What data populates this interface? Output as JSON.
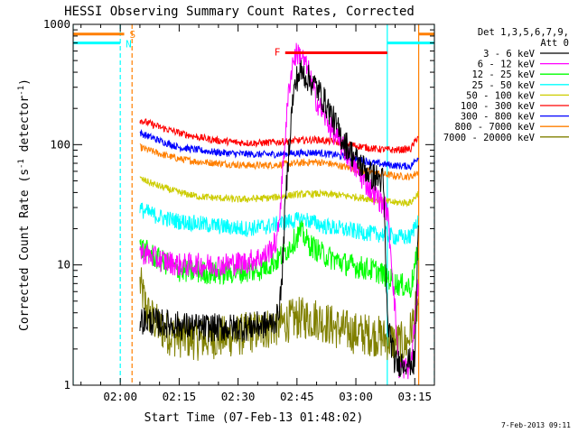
{
  "chart_data": {
    "type": "line",
    "title": "HESSI Observing Summary Count Rates, Corrected",
    "xlabel": "Start Time (07-Feb-13 01:48:02)",
    "ylabel": "Corrected Count Rate (s",
    "ylabel_sup1": "-1",
    "ylabel_mid": " detector",
    "ylabel_sup2": "-1",
    "ylabel_end": ")",
    "yscale": "log",
    "ylim": [
      1,
      1000
    ],
    "xlim_minutes": [
      108,
      200
    ],
    "x_ticks": [
      {
        "minute": 120,
        "label": "02:00"
      },
      {
        "minute": 135,
        "label": "02:15"
      },
      {
        "minute": 150,
        "label": "02:30"
      },
      {
        "minute": 165,
        "label": "02:45"
      },
      {
        "minute": 180,
        "label": "03:00"
      },
      {
        "minute": 195,
        "label": "03:15"
      }
    ],
    "y_ticks": [
      {
        "value": 1,
        "label": "1"
      },
      {
        "value": 10,
        "label": "10"
      },
      {
        "value": 100,
        "label": "100"
      },
      {
        "value": 1000,
        "label": "1000"
      }
    ],
    "legend_title_1": "Det 1,3,5,6,7,9,",
    "legend_title_2": "Att 0",
    "legend_position": "right",
    "series": [
      {
        "name": "3 - 6 keV",
        "color": "#000000",
        "noise": 0.12,
        "points": [
          [
            125,
            3.5
          ],
          [
            133,
            3.2
          ],
          [
            140,
            3.0
          ],
          [
            150,
            3.0
          ],
          [
            158,
            3.2
          ],
          [
            160,
            3.6
          ],
          [
            161,
            6
          ],
          [
            162,
            30
          ],
          [
            163,
            100
          ],
          [
            164,
            250
          ],
          [
            165,
            360
          ],
          [
            166,
            400
          ],
          [
            167,
            380
          ],
          [
            170,
            300
          ],
          [
            173,
            200
          ],
          [
            176,
            120
          ],
          [
            180,
            75
          ],
          [
            184,
            55
          ],
          [
            187,
            50
          ],
          [
            188,
            3.5
          ],
          [
            190,
            1.5
          ],
          [
            193,
            1.6
          ],
          [
            195,
            1.5
          ],
          [
            196,
            30
          ]
        ]
      },
      {
        "name": "6 - 12 keV",
        "color": "#ff00ff",
        "noise": 0.1,
        "points": [
          [
            125,
            13
          ],
          [
            130,
            11
          ],
          [
            135,
            10
          ],
          [
            145,
            10
          ],
          [
            152,
            10.5
          ],
          [
            157,
            12
          ],
          [
            160,
            16
          ],
          [
            161,
            40
          ],
          [
            162,
            120
          ],
          [
            163,
            300
          ],
          [
            164,
            500
          ],
          [
            165,
            580
          ],
          [
            166,
            560
          ],
          [
            168,
            400
          ],
          [
            170,
            230
          ],
          [
            174,
            130
          ],
          [
            178,
            80
          ],
          [
            182,
            50
          ],
          [
            186,
            35
          ],
          [
            188,
            28
          ],
          [
            189,
            12
          ],
          [
            191,
            1.4
          ],
          [
            194,
            1.4
          ],
          [
            196,
            8
          ]
        ]
      },
      {
        "name": "12 - 25 keV",
        "color": "#00ff00",
        "noise": 0.1,
        "points": [
          [
            125,
            14
          ],
          [
            130,
            11
          ],
          [
            135,
            9
          ],
          [
            145,
            8.5
          ],
          [
            155,
            9
          ],
          [
            160,
            11
          ],
          [
            163,
            14
          ],
          [
            166,
            19
          ],
          [
            168,
            15
          ],
          [
            172,
            12
          ],
          [
            178,
            10
          ],
          [
            185,
            9
          ],
          [
            188,
            8
          ],
          [
            190,
            7
          ],
          [
            194,
            6.5
          ],
          [
            196,
            14
          ]
        ]
      },
      {
        "name": "25 - 50 keV",
        "color": "#00ffff",
        "noise": 0.07,
        "points": [
          [
            125,
            29
          ],
          [
            130,
            25
          ],
          [
            135,
            23
          ],
          [
            145,
            21
          ],
          [
            152,
            20
          ],
          [
            158,
            21
          ],
          [
            163,
            23
          ],
          [
            167,
            24
          ],
          [
            172,
            21
          ],
          [
            180,
            19
          ],
          [
            185,
            18
          ],
          [
            188,
            18
          ],
          [
            190,
            17
          ],
          [
            194,
            17
          ],
          [
            196,
            26
          ]
        ]
      },
      {
        "name": "50 - 100 keV",
        "color": "#cccc00",
        "noise": 0.03,
        "points": [
          [
            125,
            52
          ],
          [
            130,
            45
          ],
          [
            135,
            40
          ],
          [
            140,
            37
          ],
          [
            145,
            36
          ],
          [
            150,
            35
          ],
          [
            158,
            36
          ],
          [
            165,
            38.5
          ],
          [
            170,
            39
          ],
          [
            176,
            38
          ],
          [
            182,
            36
          ],
          [
            187,
            34
          ],
          [
            190,
            33
          ],
          [
            194,
            33
          ],
          [
            196,
            40
          ]
        ]
      },
      {
        "name": "100 - 300 keV",
        "color": "#ff0000",
        "noise": 0.03,
        "points": [
          [
            125,
            160
          ],
          [
            130,
            140
          ],
          [
            135,
            125
          ],
          [
            140,
            115
          ],
          [
            145,
            108
          ],
          [
            150,
            104
          ],
          [
            155,
            103
          ],
          [
            160,
            105
          ],
          [
            165,
            108
          ],
          [
            170,
            110
          ],
          [
            175,
            105
          ],
          [
            180,
            98
          ],
          [
            185,
            92
          ],
          [
            190,
            90
          ],
          [
            194,
            92
          ],
          [
            196,
            120
          ]
        ]
      },
      {
        "name": "300 - 800 keV",
        "color": "#0000ff",
        "noise": 0.03,
        "points": [
          [
            125,
            125
          ],
          [
            130,
            108
          ],
          [
            135,
            95
          ],
          [
            140,
            90
          ],
          [
            145,
            86
          ],
          [
            150,
            84
          ],
          [
            155,
            83
          ],
          [
            160,
            83
          ],
          [
            165,
            85
          ],
          [
            170,
            86
          ],
          [
            175,
            82
          ],
          [
            180,
            76
          ],
          [
            185,
            70
          ],
          [
            190,
            67
          ],
          [
            194,
            66
          ],
          [
            196,
            80
          ]
        ]
      },
      {
        "name": "800 - 7000 keV",
        "color": "#ff7f00",
        "noise": 0.03,
        "points": [
          [
            125,
            95
          ],
          [
            130,
            84
          ],
          [
            135,
            76
          ],
          [
            140,
            72
          ],
          [
            145,
            70
          ],
          [
            150,
            68
          ],
          [
            155,
            67
          ],
          [
            160,
            68
          ],
          [
            165,
            70
          ],
          [
            170,
            72
          ],
          [
            175,
            68
          ],
          [
            180,
            62
          ],
          [
            185,
            58
          ],
          [
            190,
            55
          ],
          [
            194,
            54
          ],
          [
            196,
            60
          ]
        ]
      },
      {
        "name": "7000 - 20000 keV",
        "color": "#808000",
        "noise": 0.18,
        "points": [
          [
            125,
            7
          ],
          [
            127,
            4
          ],
          [
            130,
            3
          ],
          [
            133,
            2.6
          ],
          [
            140,
            2.4
          ],
          [
            150,
            2.6
          ],
          [
            158,
            3.0
          ],
          [
            165,
            3.6
          ],
          [
            170,
            3.6
          ],
          [
            175,
            3.0
          ],
          [
            180,
            2.7
          ],
          [
            185,
            2.6
          ],
          [
            188,
            2.4
          ],
          [
            190,
            2.3
          ],
          [
            193,
            2.2
          ],
          [
            196,
            5
          ]
        ]
      }
    ],
    "annotations": [
      {
        "letter": "S",
        "color": "#ff7f00",
        "minute": 121
      },
      {
        "letter": "N",
        "color": "#00ffff",
        "minute": 120
      },
      {
        "letter": "F",
        "color": "#ff0000",
        "minute": 162
      }
    ],
    "flare_bar": {
      "start": 162,
      "end": 188,
      "value": 580,
      "color": "#ff0000"
    },
    "state_bars": [
      {
        "color": "#ff7f00",
        "start": 108,
        "end": 121,
        "value": 830
      },
      {
        "color": "#00ffff",
        "start": 108,
        "end": 120,
        "value": 700
      },
      {
        "color": "#ff7f00",
        "start": 196,
        "end": 200,
        "value": 830
      },
      {
        "color": "#00ffff",
        "start": 188,
        "end": 200,
        "value": 700
      }
    ],
    "vlines": [
      {
        "minute": 108,
        "color": "#00ffff",
        "dash": false
      },
      {
        "minute": 120,
        "color": "#00ffff",
        "dash": true
      },
      {
        "minute": 123,
        "color": "#ff7f00",
        "dash": true
      },
      {
        "minute": 188,
        "color": "#00ffff",
        "dash": false
      },
      {
        "minute": 196,
        "color": "#ff7f00",
        "dash": false
      },
      {
        "minute": 200,
        "color": "#00ffff",
        "dash": true
      }
    ]
  },
  "footer_date": "7-Feb-2013 09:11"
}
